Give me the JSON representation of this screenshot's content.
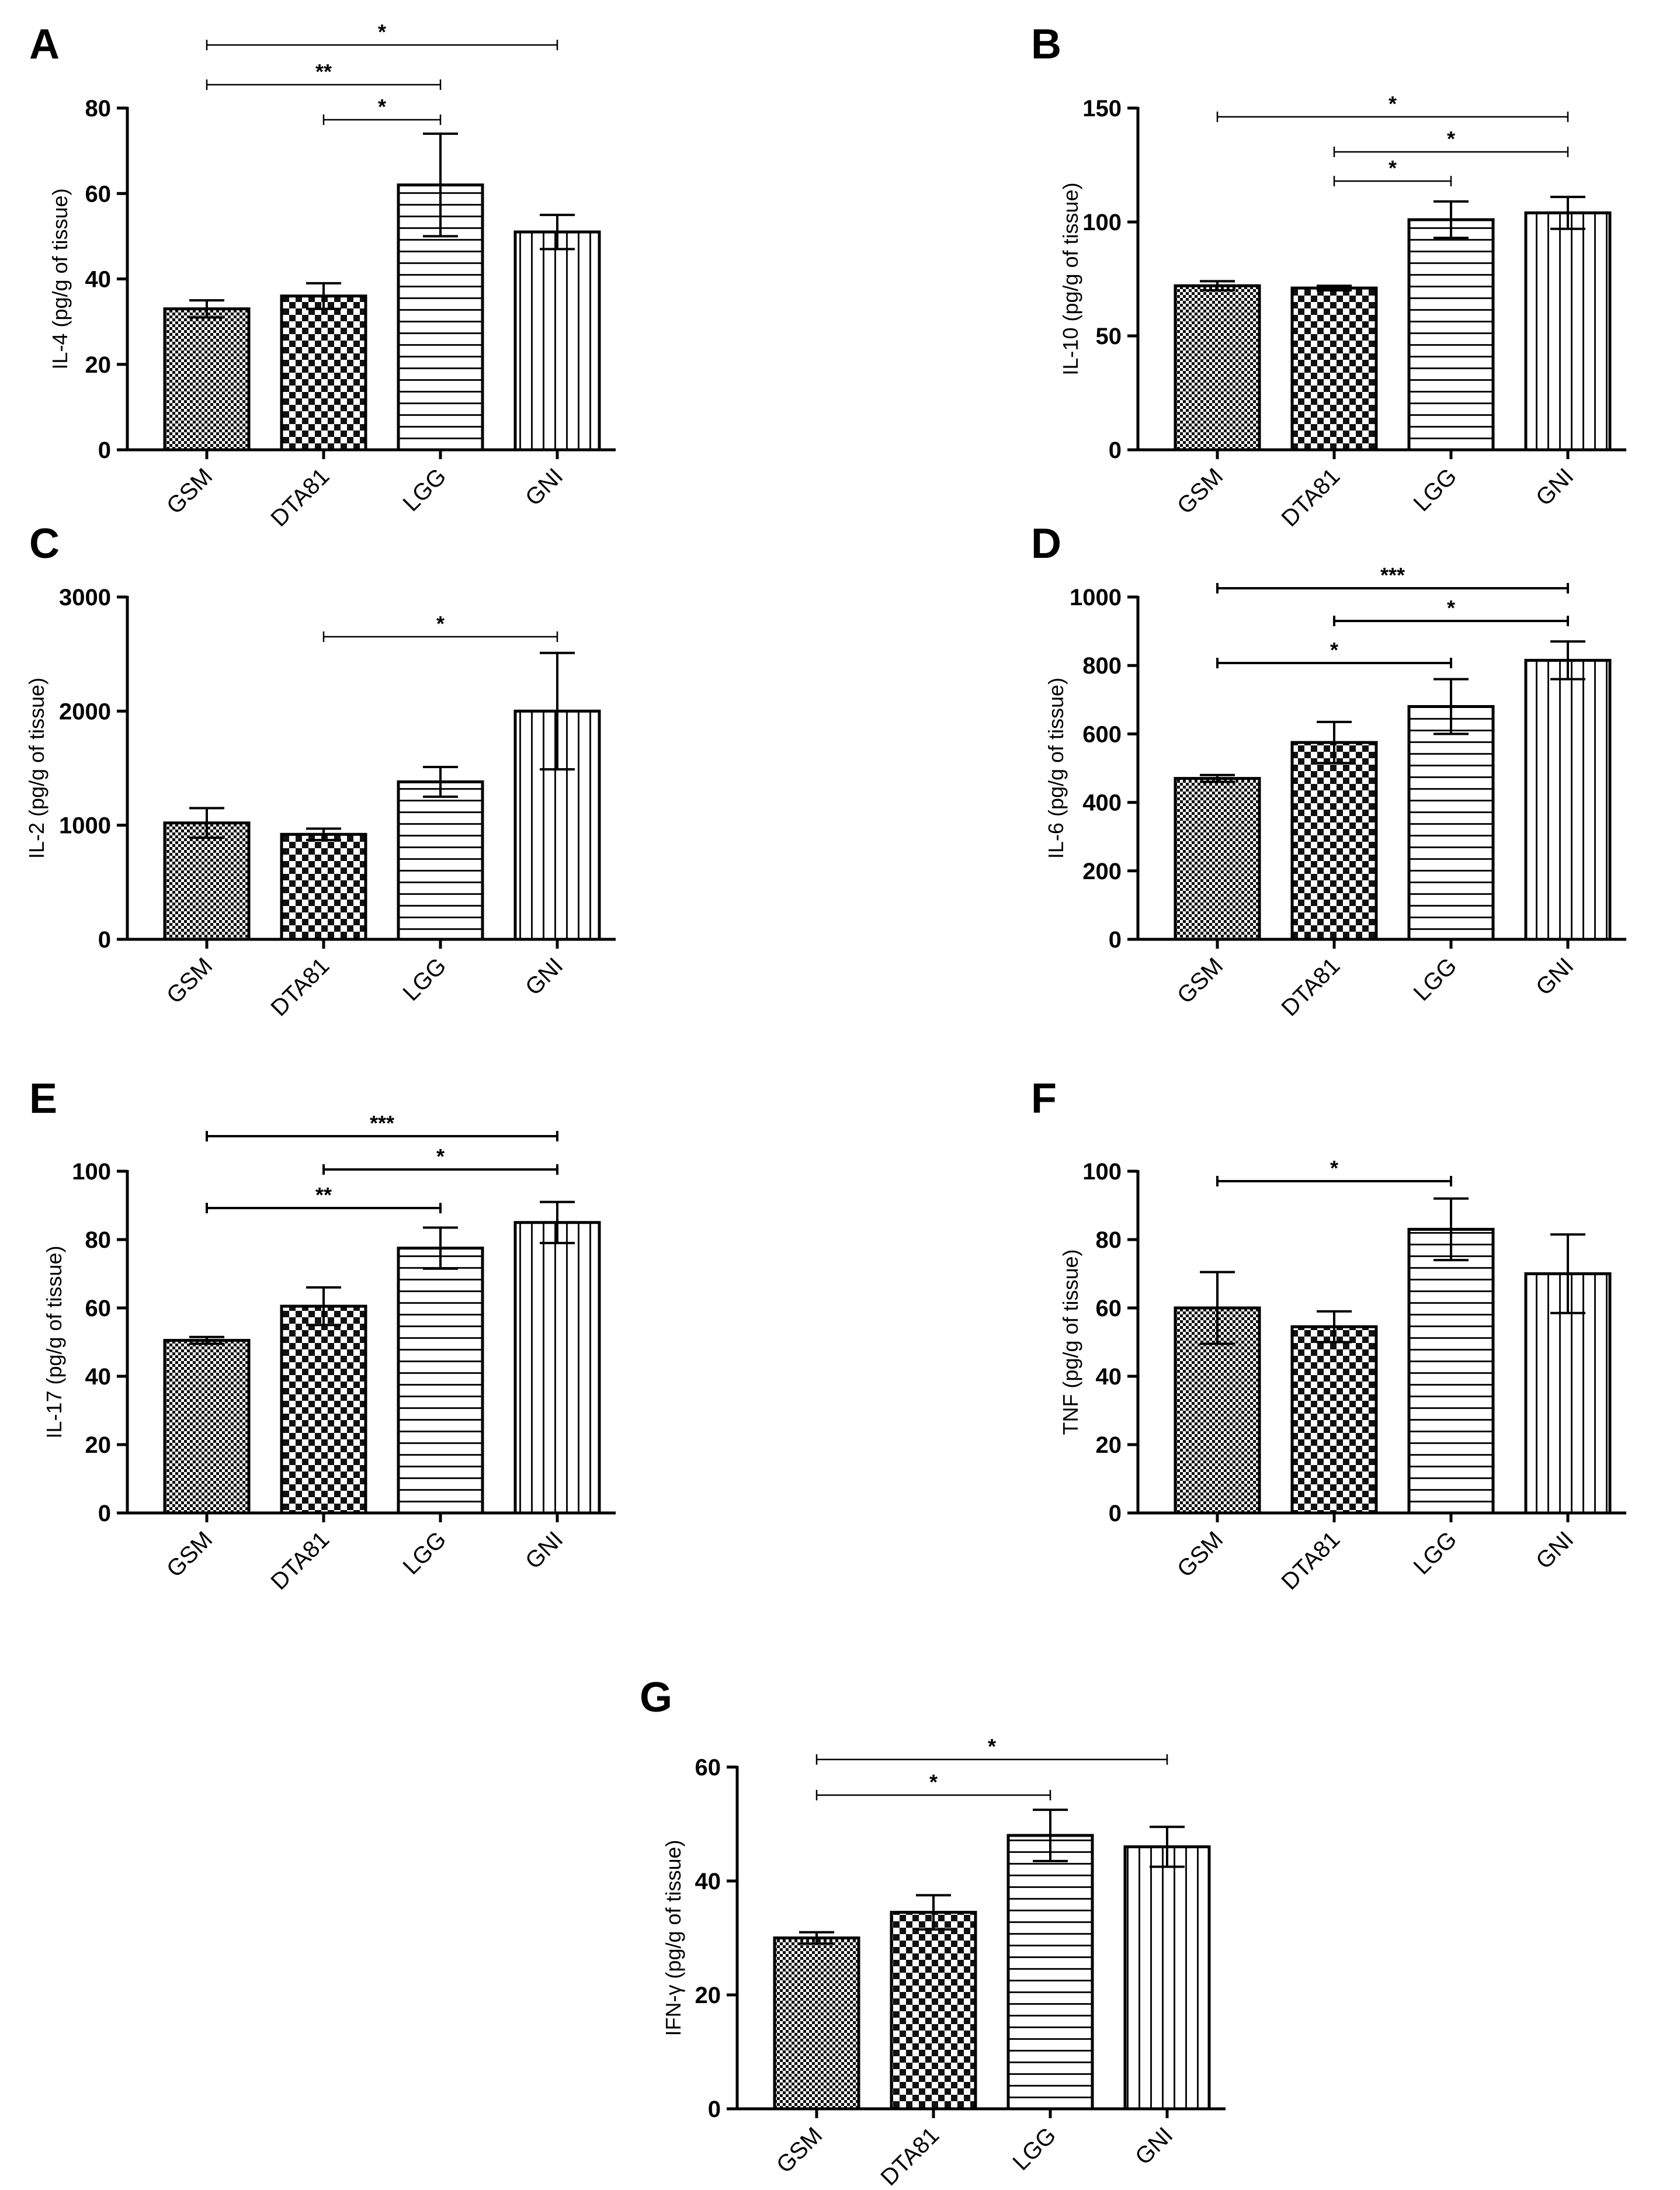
{
  "chart_data": [
    {
      "panel": "A",
      "type": "bar",
      "categories": [
        "GSM",
        "DTA81",
        "LGG",
        "GNI"
      ],
      "values": [
        33,
        36,
        62,
        51
      ],
      "errors": [
        2,
        3,
        12,
        4
      ],
      "ylabel": "IL-4 (pg/g of tissue)",
      "ylim": [
        0,
        80
      ],
      "yticks": [
        0,
        20,
        40,
        60,
        80
      ],
      "significance": [
        {
          "from": 0,
          "to": 3,
          "label": "*"
        },
        {
          "from": 0,
          "to": 2,
          "label": "**"
        },
        {
          "from": 1,
          "to": 2,
          "label": "*"
        }
      ]
    },
    {
      "panel": "B",
      "type": "bar",
      "categories": [
        "GSM",
        "DTA81",
        "LGG",
        "GNI"
      ],
      "values": [
        72,
        71,
        101,
        104
      ],
      "errors": [
        2,
        1,
        8,
        7
      ],
      "ylabel": "IL-10 (pg/g of tissue)",
      "ylim": [
        0,
        150
      ],
      "yticks": [
        0,
        50,
        100,
        150
      ],
      "significance": [
        {
          "from": 0,
          "to": 3,
          "label": "*"
        },
        {
          "from": 1,
          "to": 3,
          "label": "*"
        },
        {
          "from": 1,
          "to": 2,
          "label": "*"
        }
      ]
    },
    {
      "panel": "C",
      "type": "bar",
      "categories": [
        "GSM",
        "DTA81",
        "LGG",
        "GNI"
      ],
      "values": [
        1020,
        920,
        1380,
        2000
      ],
      "errors": [
        130,
        50,
        130,
        510
      ],
      "ylabel": "IL-2 (pg/g of tissue)",
      "ylim": [
        0,
        3000
      ],
      "yticks": [
        0,
        1000,
        2000,
        3000
      ],
      "significance": [
        {
          "from": 1,
          "to": 3,
          "label": "*"
        }
      ]
    },
    {
      "panel": "D",
      "type": "bar",
      "categories": [
        "GSM",
        "DTA81",
        "LGG",
        "GNI"
      ],
      "values": [
        470,
        575,
        680,
        815
      ],
      "errors": [
        10,
        60,
        80,
        55
      ],
      "ylabel": "IL-6 (pg/g of tissue)",
      "ylim": [
        0,
        1000
      ],
      "yticks": [
        0,
        200,
        400,
        600,
        800,
        1000
      ],
      "significance": [
        {
          "from": 0,
          "to": 3,
          "label": "***"
        },
        {
          "from": 1,
          "to": 3,
          "label": "*"
        },
        {
          "from": 0,
          "to": 2,
          "label": "*"
        }
      ]
    },
    {
      "panel": "E",
      "type": "bar",
      "categories": [
        "GSM",
        "DTA81",
        "LGG",
        "GNI"
      ],
      "values": [
        50.5,
        60.5,
        77.5,
        85
      ],
      "errors": [
        1,
        5.5,
        6,
        6
      ],
      "ylabel": "IL-17 (pg/g of tissue)",
      "ylim": [
        0,
        100
      ],
      "yticks": [
        0,
        20,
        40,
        60,
        80,
        100
      ],
      "significance": [
        {
          "from": 0,
          "to": 3,
          "label": "***"
        },
        {
          "from": 1,
          "to": 3,
          "label": "*"
        },
        {
          "from": 0,
          "to": 2,
          "label": "**"
        }
      ]
    },
    {
      "panel": "F",
      "type": "bar",
      "categories": [
        "GSM",
        "DTA81",
        "LGG",
        "GNI"
      ],
      "values": [
        60,
        54.5,
        83,
        70
      ],
      "errors": [
        10.5,
        4.5,
        9,
        11.5
      ],
      "ylabel": "TNF (pg/g of tissue)",
      "ylim": [
        0,
        100
      ],
      "yticks": [
        0,
        20,
        40,
        60,
        80,
        100
      ],
      "significance": [
        {
          "from": 0,
          "to": 2,
          "label": "*"
        }
      ]
    },
    {
      "panel": "G",
      "type": "bar",
      "categories": [
        "GSM",
        "DTA81",
        "LGG",
        "GNI"
      ],
      "values": [
        30,
        34.5,
        48,
        46
      ],
      "errors": [
        1,
        3,
        4.5,
        3.5
      ],
      "ylabel": "IFN-γ (pg/g of tissue)",
      "ylim": [
        0,
        60
      ],
      "yticks": [
        0,
        20,
        40,
        60
      ],
      "significance": [
        {
          "from": 0,
          "to": 3,
          "label": "*"
        },
        {
          "from": 0,
          "to": 2,
          "label": "*"
        }
      ]
    }
  ]
}
